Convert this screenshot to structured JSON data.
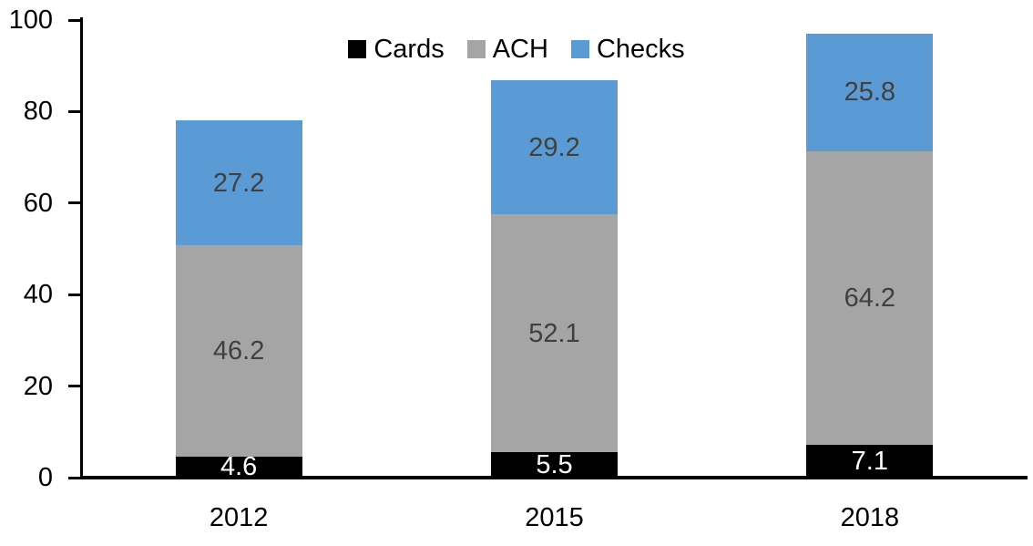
{
  "chart_data": {
    "type": "bar",
    "variant": "stacked-column",
    "title": "",
    "xlabel": "",
    "ylabel": "",
    "categories": [
      "2012",
      "2015",
      "2018"
    ],
    "series": [
      {
        "name": "Cards",
        "color": "#000000",
        "label_color": "#ffffff",
        "values": [
          4.6,
          5.5,
          7.1
        ]
      },
      {
        "name": "ACH",
        "color": "#a5a5a5",
        "label_color": "#404040",
        "values": [
          46.2,
          52.1,
          64.2
        ]
      },
      {
        "name": "Checks",
        "color": "#5b9bd5",
        "label_color": "#404040",
        "values": [
          27.2,
          29.2,
          25.8
        ]
      }
    ],
    "stack_totals": [
      78.0,
      86.8,
      97.1
    ],
    "ylim": [
      0,
      100
    ],
    "yticks": [
      0,
      20,
      40,
      60,
      80,
      100
    ],
    "grid": false,
    "legend_position": "top-center",
    "legend_labels": [
      "Cards",
      "ACH",
      "Checks"
    ],
    "axis_color": "#000000",
    "background_color": "#ffffff",
    "data_labels_visible": true
  }
}
